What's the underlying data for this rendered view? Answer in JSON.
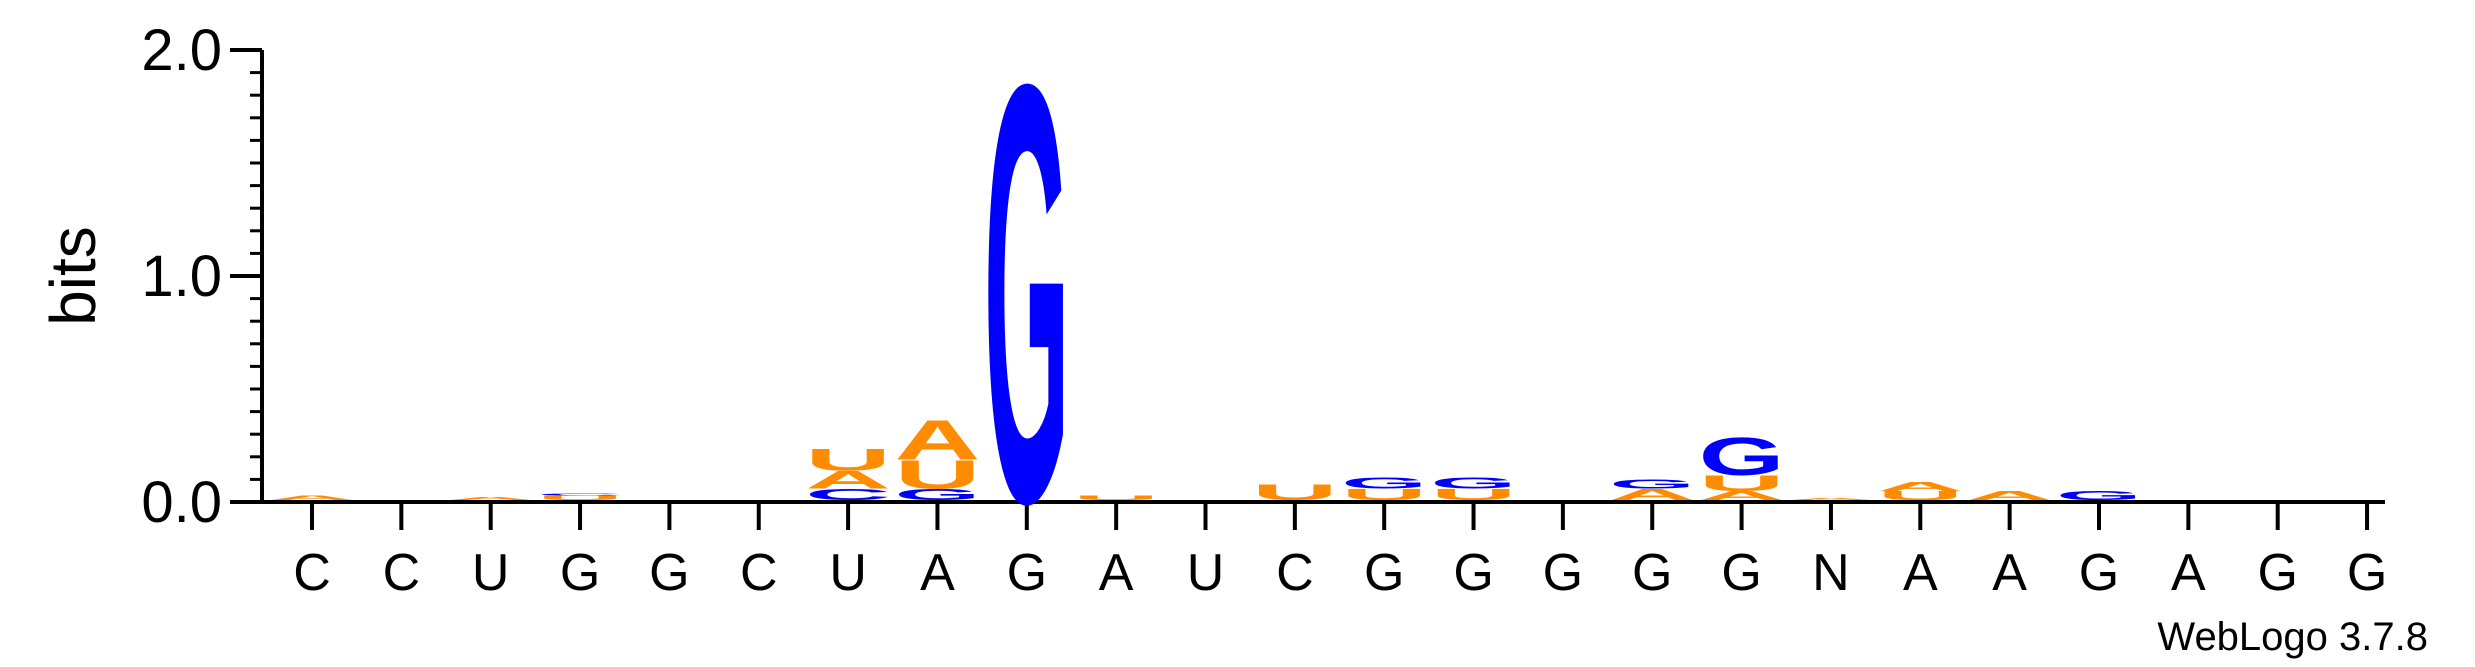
{
  "chart_data": {
    "type": "sequence-logo",
    "ylabel": "bits",
    "ylim": [
      0,
      2.0
    ],
    "y_ticks": [
      "0.0",
      "1.0",
      "2.0"
    ],
    "x_labels": [
      "C",
      "C",
      "U",
      "G",
      "G",
      "C",
      "U",
      "A",
      "G",
      "A",
      "U",
      "C",
      "G",
      "G",
      "G",
      "G",
      "G",
      "N",
      "A",
      "A",
      "G",
      "A",
      "G",
      "G"
    ],
    "watermark": "WebLogo 3.7.8",
    "colors": {
      "A": "#ff8c00",
      "U": "#ff8c00",
      "G": "#0000ff",
      "C": "#0000ff"
    },
    "positions": [
      [
        {
          "letter": "A",
          "bits": 0.02
        }
      ],
      [],
      [
        {
          "letter": "A",
          "bits": 0.015
        }
      ],
      [
        {
          "letter": "U",
          "bits": 0.02
        },
        {
          "letter": "C",
          "bits": 0.01
        }
      ],
      [],
      [],
      [
        {
          "letter": "C",
          "bits": 0.05
        },
        {
          "letter": "A",
          "bits": 0.08
        },
        {
          "letter": "U",
          "bits": 0.1
        }
      ],
      [
        {
          "letter": "G",
          "bits": 0.05
        },
        {
          "letter": "U",
          "bits": 0.13
        },
        {
          "letter": "A",
          "bits": 0.18
        }
      ],
      [
        {
          "letter": "G",
          "bits": 1.9
        }
      ],
      [
        {
          "letter": "U",
          "bits": 0.02
        }
      ],
      [],
      [
        {
          "letter": "U",
          "bits": 0.07
        }
      ],
      [
        {
          "letter": "U",
          "bits": 0.05
        },
        {
          "letter": "G",
          "bits": 0.05
        }
      ],
      [
        {
          "letter": "U",
          "bits": 0.05
        },
        {
          "letter": "G",
          "bits": 0.05
        }
      ],
      [],
      [
        {
          "letter": "A",
          "bits": 0.05
        },
        {
          "letter": "G",
          "bits": 0.04
        }
      ],
      [
        {
          "letter": "A",
          "bits": 0.04
        },
        {
          "letter": "U",
          "bits": 0.07
        },
        {
          "letter": "G",
          "bits": 0.17
        }
      ],
      [
        {
          "letter": "A",
          "bits": 0.01
        }
      ],
      [
        {
          "letter": "U",
          "bits": 0.04
        },
        {
          "letter": "A",
          "bits": 0.04
        }
      ],
      [
        {
          "letter": "A",
          "bits": 0.04
        }
      ],
      [
        {
          "letter": "G",
          "bits": 0.04
        }
      ],
      [],
      [],
      []
    ]
  }
}
